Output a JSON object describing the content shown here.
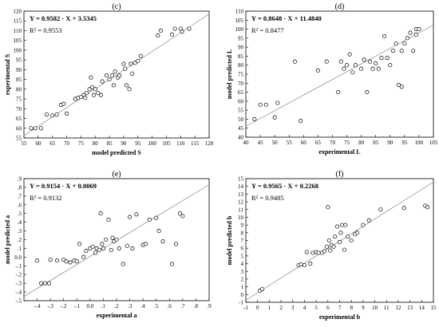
{
  "chart_data": [
    {
      "type": "scatter",
      "panel_label": "(c)",
      "equation": "Y = 0.9582 · X + 3.5345",
      "r2": "R² = 0.9553",
      "xlabel": "model predicted S",
      "ylabel": "experimental S",
      "xlim": [
        55,
        120
      ],
      "ylim": [
        55,
        120
      ],
      "xticks": [
        55,
        60,
        65,
        70,
        75,
        80,
        85,
        90,
        95,
        100,
        105,
        110,
        115,
        120
      ],
      "yticks": [
        55,
        60,
        65,
        70,
        75,
        80,
        85,
        90,
        95,
        100,
        105,
        110,
        115,
        120
      ],
      "points": [
        [
          57.5,
          60
        ],
        [
          59,
          60
        ],
        [
          61,
          60
        ],
        [
          63,
          67
        ],
        [
          65,
          66.5
        ],
        [
          66.5,
          67
        ],
        [
          68,
          72
        ],
        [
          69,
          72.5
        ],
        [
          70,
          67.5
        ],
        [
          73,
          75
        ],
        [
          74,
          75.5
        ],
        [
          75,
          76
        ],
        [
          76,
          77
        ],
        [
          76.5,
          75.5
        ],
        [
          77,
          78
        ],
        [
          78,
          80
        ],
        [
          78.5,
          86
        ],
        [
          79,
          81
        ],
        [
          79.5,
          77
        ],
        [
          80,
          80
        ],
        [
          81,
          78
        ],
        [
          82,
          77
        ],
        [
          82.5,
          84
        ],
        [
          84,
          87
        ],
        [
          85,
          85
        ],
        [
          86,
          87
        ],
        [
          86.5,
          82
        ],
        [
          87,
          89
        ],
        [
          88,
          86
        ],
        [
          88.5,
          87
        ],
        [
          90,
          93
        ],
        [
          90.5,
          90.5
        ],
        [
          91,
          82
        ],
        [
          92,
          80
        ],
        [
          92.5,
          93
        ],
        [
          93,
          88
        ],
        [
          94,
          93.5
        ],
        [
          95,
          94.5
        ],
        [
          96,
          97
        ],
        [
          102,
          107.5
        ],
        [
          103,
          110
        ],
        [
          107,
          108
        ],
        [
          108,
          111
        ],
        [
          110,
          111
        ],
        [
          110.5,
          109.5
        ],
        [
          113,
          111
        ]
      ],
      "line": [
        [
          55,
          56.2
        ],
        [
          120,
          118.5
        ]
      ]
    },
    {
      "type": "scatter",
      "panel_label": "(d)",
      "equation": "Y = 0.8648 · X + 11.4840",
      "r2": "R² = 0.8477",
      "xlabel": "experimental L",
      "ylabel": "model predicted L",
      "xlim": [
        40,
        105
      ],
      "ylim": [
        40,
        110
      ],
      "xticks": [
        40,
        45,
        50,
        55,
        60,
        65,
        70,
        75,
        80,
        85,
        90,
        95,
        100,
        105
      ],
      "yticks": [
        40,
        45,
        50,
        55,
        60,
        65,
        70,
        75,
        80,
        85,
        90,
        95,
        100,
        105,
        110
      ],
      "points": [
        [
          43,
          50
        ],
        [
          45,
          58
        ],
        [
          47,
          58
        ],
        [
          50,
          51
        ],
        [
          51,
          59
        ],
        [
          57,
          82
        ],
        [
          59,
          49
        ],
        [
          65,
          77
        ],
        [
          68,
          82
        ],
        [
          72,
          65
        ],
        [
          73,
          82
        ],
        [
          74,
          78
        ],
        [
          75,
          80
        ],
        [
          76,
          86
        ],
        [
          77,
          76
        ],
        [
          78,
          80
        ],
        [
          80,
          78
        ],
        [
          81,
          83
        ],
        [
          82,
          65
        ],
        [
          83,
          82
        ],
        [
          84,
          78
        ],
        [
          85,
          81
        ],
        [
          86,
          78
        ],
        [
          87,
          84
        ],
        [
          88,
          96
        ],
        [
          89,
          84
        ],
        [
          90,
          80
        ],
        [
          91,
          88
        ],
        [
          92,
          92
        ],
        [
          93,
          69
        ],
        [
          94,
          68
        ],
        [
          94,
          88
        ],
        [
          95,
          92
        ],
        [
          96,
          95
        ],
        [
          97,
          98
        ],
        [
          98,
          88
        ],
        [
          99,
          97
        ],
        [
          99,
          100
        ],
        [
          100,
          100
        ]
      ],
      "line": [
        [
          40,
          46.1
        ],
        [
          105,
          102.3
        ]
      ]
    },
    {
      "type": "scatter",
      "panel_label": "(e)",
      "equation": "Y = 0.9154 · X + 0.0069",
      "r2": "R² = 0.9132",
      "xlabel": "experimental a",
      "ylabel": "model predicted a",
      "xlim": [
        -0.5,
        0.9
      ],
      "ylim": [
        -0.5,
        0.9
      ],
      "xticks": [
        -0.4,
        -0.3,
        -0.2,
        -0.1,
        0.0,
        0.1,
        0.2,
        0.3,
        0.4,
        0.5,
        0.6,
        0.7,
        0.8,
        0.9
      ],
      "yticks": [
        -0.5,
        -0.4,
        -0.3,
        -0.2,
        -0.1,
        0.0,
        0.1,
        0.2,
        0.3,
        0.4,
        0.5,
        0.6,
        0.7,
        0.8,
        0.9
      ],
      "points": [
        [
          -0.4,
          -0.04
        ],
        [
          -0.37,
          -0.3
        ],
        [
          -0.34,
          -0.3
        ],
        [
          -0.31,
          -0.3
        ],
        [
          -0.3,
          -0.03
        ],
        [
          -0.25,
          -0.04
        ],
        [
          -0.2,
          -0.03
        ],
        [
          -0.18,
          -0.05
        ],
        [
          -0.15,
          -0.06
        ],
        [
          -0.12,
          -0.04
        ],
        [
          -0.1,
          -0.05
        ],
        [
          -0.08,
          0.15
        ],
        [
          -0.05,
          0.0
        ],
        [
          -0.03,
          0.07
        ],
        [
          0.0,
          0.1
        ],
        [
          0.02,
          0.12
        ],
        [
          0.04,
          0.05
        ],
        [
          0.05,
          0.1
        ],
        [
          0.07,
          0.08
        ],
        [
          0.08,
          0.5
        ],
        [
          0.09,
          0.15
        ],
        [
          0.1,
          0.1
        ],
        [
          0.12,
          0.2
        ],
        [
          0.14,
          0.43
        ],
        [
          0.16,
          0.08
        ],
        [
          0.17,
          0.22
        ],
        [
          0.18,
          0.18
        ],
        [
          0.2,
          0.2
        ],
        [
          0.22,
          0.1
        ],
        [
          0.25,
          -0.08
        ],
        [
          0.28,
          0.13
        ],
        [
          0.3,
          0.46
        ],
        [
          0.32,
          0.1
        ],
        [
          0.35,
          0.49
        ],
        [
          0.4,
          0.14
        ],
        [
          0.42,
          0.15
        ],
        [
          0.45,
          0.43
        ],
        [
          0.5,
          0.45
        ],
        [
          0.52,
          0.3
        ],
        [
          0.55,
          0.18
        ],
        [
          0.62,
          -0.08
        ],
        [
          0.65,
          0.15
        ],
        [
          0.68,
          0.5
        ],
        [
          0.7,
          0.47
        ]
      ],
      "line": [
        [
          -0.5,
          -0.451
        ],
        [
          0.9,
          0.831
        ]
      ]
    },
    {
      "type": "scatter",
      "panel_label": "(f)",
      "equation": "Y = 0.9565 · X + 0.2268",
      "r2": "R² = 0.9485",
      "xlabel": "experimental b",
      "ylabel": "model predicted b",
      "xlim": [
        -1,
        15
      ],
      "ylim": [
        -1,
        15
      ],
      "xticks": [
        -1,
        0,
        1,
        2,
        3,
        4,
        5,
        6,
        7,
        8,
        9,
        10,
        11,
        12,
        13,
        14,
        15
      ],
      "yticks": [
        -1,
        0,
        1,
        2,
        3,
        4,
        5,
        6,
        7,
        8,
        9,
        10,
        11,
        12,
        13,
        14,
        15
      ],
      "points": [
        [
          0.2,
          0.5
        ],
        [
          0.4,
          0.7
        ],
        [
          3.5,
          3.8
        ],
        [
          3.7,
          3.9
        ],
        [
          4.0,
          3.8
        ],
        [
          4.2,
          5.5
        ],
        [
          4.5,
          4.0
        ],
        [
          4.7,
          5.4
        ],
        [
          5.0,
          5.5
        ],
        [
          5.2,
          5.4
        ],
        [
          5.5,
          5.4
        ],
        [
          5.7,
          5.6
        ],
        [
          5.9,
          6.2
        ],
        [
          6.0,
          11.3
        ],
        [
          6.1,
          7.0
        ],
        [
          6.2,
          5.7
        ],
        [
          6.3,
          6.4
        ],
        [
          6.5,
          6.2
        ],
        [
          6.6,
          7.5
        ],
        [
          6.8,
          8.8
        ],
        [
          7.0,
          6.8
        ],
        [
          7.1,
          8.0
        ],
        [
          7.2,
          9.0
        ],
        [
          7.4,
          5.8
        ],
        [
          7.5,
          9.0
        ],
        [
          7.7,
          7.5
        ],
        [
          8.0,
          7.0
        ],
        [
          8.3,
          7.8
        ],
        [
          8.5,
          8.0
        ],
        [
          9.0,
          9.0
        ],
        [
          9.5,
          9.6
        ],
        [
          10.5,
          11.0
        ],
        [
          12.5,
          11.2
        ],
        [
          14.3,
          11.5
        ],
        [
          14.5,
          11.3
        ]
      ],
      "line": [
        [
          -1,
          -0.73
        ],
        [
          15,
          14.57
        ]
      ]
    }
  ]
}
